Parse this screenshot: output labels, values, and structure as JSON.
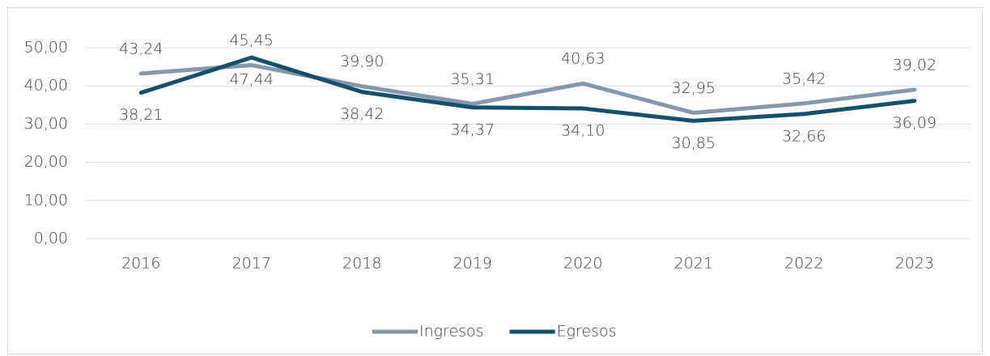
{
  "chart_data": {
    "type": "line",
    "categories": [
      "2016",
      "2017",
      "2018",
      "2019",
      "2020",
      "2021",
      "2022",
      "2023"
    ],
    "series": [
      {
        "name": "Ingresos",
        "color": "#8597aa",
        "values": [
          43.24,
          45.45,
          39.9,
          35.31,
          40.63,
          32.95,
          35.42,
          39.02
        ],
        "value_labels": [
          "43,24",
          "45,45",
          "39,90",
          "35,31",
          "40,63",
          "32,95",
          "35,42",
          "39,02"
        ]
      },
      {
        "name": "Egresos",
        "color": "#14506b",
        "values": [
          38.21,
          47.44,
          38.42,
          34.37,
          34.1,
          30.85,
          32.66,
          36.09
        ],
        "value_labels": [
          "38,21",
          "47,44",
          "38,42",
          "34,37",
          "34,10",
          "30,85",
          "32,66",
          "36,09"
        ]
      }
    ],
    "ylim": [
      0,
      50
    ],
    "yticks": [
      {
        "value": 0,
        "label": "0,00"
      },
      {
        "value": 10,
        "label": "10,00"
      },
      {
        "value": 20,
        "label": "20,00"
      },
      {
        "value": 30,
        "label": "30,00"
      },
      {
        "value": 40,
        "label": "40,00"
      },
      {
        "value": 50,
        "label": "50,00"
      }
    ],
    "grid": true,
    "legend": "bottom"
  }
}
